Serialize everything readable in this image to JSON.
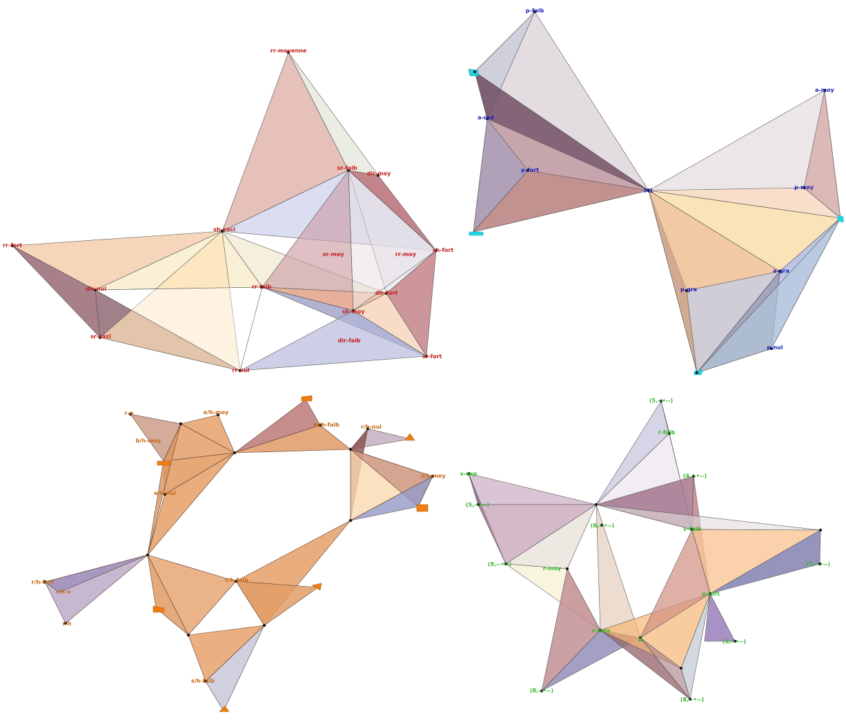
{
  "colors": {
    "panel1_label": "#c41c1c",
    "panel2_label": "#1a1fb5",
    "panel3_label": "#c56a12",
    "panel4_label": "#35b82a",
    "marker_cyan": "#22d3e6",
    "marker_orange": "#f07d10"
  },
  "panels": [
    {
      "name": "panel-top-left",
      "labels": [
        "rr-moyenne",
        "sr-faib",
        "dir-moy",
        "sh-exci",
        "rr-fort",
        "sr-moy",
        "rr-moy",
        "sh-fort",
        "dir-nul",
        "rr-faib",
        "dir-fort",
        "sh-moy",
        "sr-exci",
        "dir-faib",
        "sr-fort",
        "rr-nul"
      ]
    },
    {
      "name": "panel-top-right",
      "labels": [
        "p-faib",
        "a-moy",
        "a-red",
        "p-fort",
        "M1",
        "p-moy",
        "a-gra",
        "p-gra",
        "p-nul"
      ]
    },
    {
      "name": "panel-bottom-left",
      "labels": [
        "r-n",
        "e/h-moy",
        "b/h-moy",
        "m/h-faib",
        "r/h-nul",
        "e/h-nul",
        "s/h-moy",
        "r/h-fort",
        "r/h-v",
        "r-h",
        "c/h-faib",
        "s/h-faib"
      ]
    },
    {
      "name": "panel-bottom-right",
      "labels": [
        "(5,--•--)",
        "r-faib",
        "v-exp",
        "(4,--•--)",
        "(5,--•--)",
        "(6,--•--)",
        "v-faib",
        "(9,--•--)",
        "r-moy",
        "(7,--•--)",
        "p-fort",
        "v-moy",
        "A",
        "(6,--•--)",
        "(8,--•--)",
        "(8,--•--)"
      ]
    }
  ]
}
